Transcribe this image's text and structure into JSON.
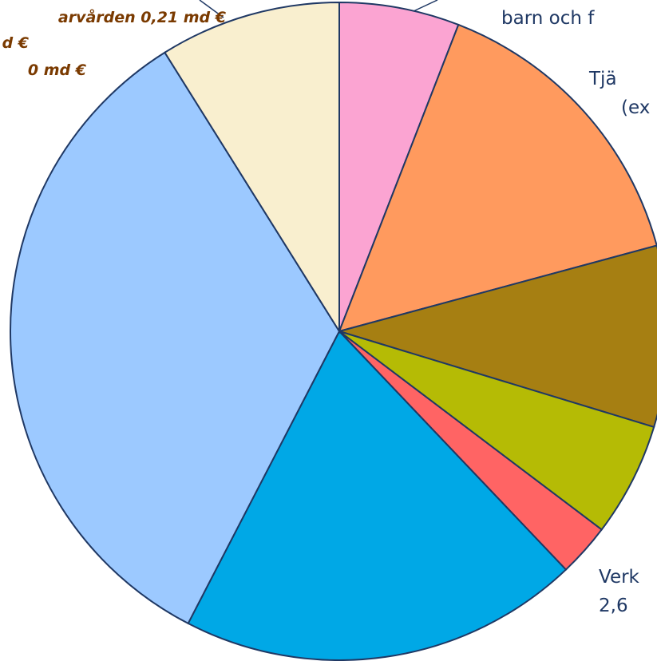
{
  "chart_data": {
    "type": "pie",
    "values": [
      5.9,
      14.9,
      8.9,
      5.6,
      2.6,
      19.7,
      33.5,
      8.9
    ],
    "colors": [
      "#fba4d2",
      "#ff9a5e",
      "#a67f12",
      "#b5bb05",
      "#ff6464",
      "#00a8e6",
      "#9cc9ff",
      "#f9efcf"
    ],
    "annotations": [
      "arvården 0,21 md €",
      "d €",
      "0 md €",
      "barn och f",
      "Tjä",
      "(ex",
      "Verk",
      "2,6"
    ]
  }
}
